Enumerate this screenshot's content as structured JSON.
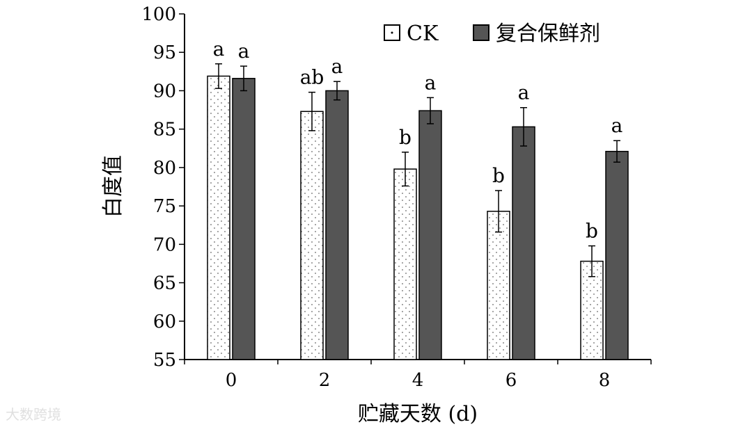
{
  "chart_data": {
    "type": "bar",
    "categories": [
      "0",
      "2",
      "4",
      "6",
      "8"
    ],
    "series": [
      {
        "name": "CK",
        "values": [
          91.9,
          87.3,
          79.8,
          74.3,
          67.8
        ],
        "errors": [
          1.6,
          2.5,
          2.2,
          2.7,
          2.0
        ],
        "significance": [
          "a",
          "ab",
          "b",
          "b",
          "b"
        ],
        "color": "#ffffff",
        "pattern": "dotted"
      },
      {
        "name": "复合保鲜剂",
        "values": [
          91.6,
          90.0,
          87.4,
          85.3,
          82.1
        ],
        "errors": [
          1.6,
          1.2,
          1.7,
          2.5,
          1.4
        ],
        "significance": [
          "a",
          "a",
          "a",
          "a",
          "a"
        ],
        "color": "#555555",
        "pattern": "solid"
      }
    ],
    "xlabel": "贮藏天数 (d)",
    "ylabel": "白度值",
    "ylim": [
      55,
      100
    ],
    "yticks": [
      55,
      60,
      65,
      70,
      75,
      80,
      85,
      90,
      95,
      100
    ],
    "legend_position": "top-right",
    "grid": false
  },
  "watermark": "大数跨境"
}
